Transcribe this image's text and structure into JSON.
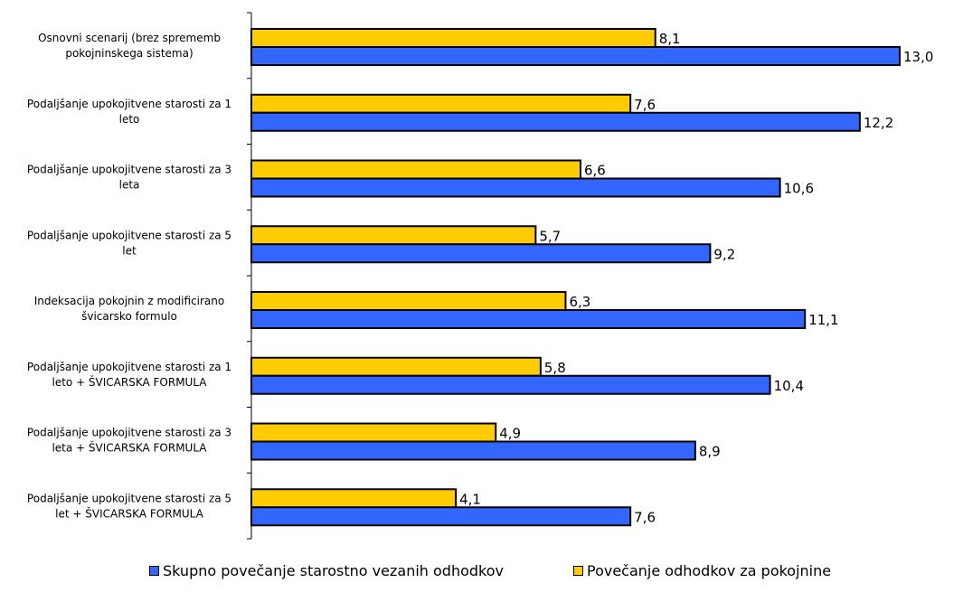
{
  "chart_data": {
    "type": "bar",
    "orientation": "horizontal",
    "categories": [
      [
        "Osnovni scenarij (brez sprememb",
        "pokojninskega sistema)"
      ],
      [
        "Podaljšanje upokojitvene starosti za 1",
        "leto"
      ],
      [
        "Podaljšanje upokojitvene starosti za 3",
        "leta"
      ],
      [
        "Podaljšanje upokojitvene starosti za 5",
        "let"
      ],
      [
        "Indeksacija pokojnin z modificirano",
        "švicarsko formulo"
      ],
      [
        "Podaljšanje upokojitvene starosti za 1",
        "leto + ŠVICARSKA FORMULA"
      ],
      [
        "Podaljšanje upokojitvene starosti za 3",
        "leta + ŠVICARSKA FORMULA"
      ],
      [
        "Podaljšanje upokojitvene starosti za 5",
        "let + ŠVICARSKA FORMULA"
      ]
    ],
    "series": [
      {
        "name": "Povečanje odhodkov za pokojnine",
        "color": "#ffcc00",
        "values": [
          8.1,
          7.6,
          6.6,
          5.7,
          6.3,
          5.8,
          4.9,
          4.1
        ],
        "labels": [
          "8,1",
          "7,6",
          "6,6",
          "5,7",
          "6,3",
          "5,8",
          "4,9",
          "4,1"
        ]
      },
      {
        "name": "Skupno povečanje starostno vezanih odhodkov",
        "color": "#3366ff",
        "values": [
          13.0,
          12.2,
          10.6,
          9.2,
          11.1,
          10.4,
          8.9,
          7.6
        ],
        "labels": [
          "13,0",
          "12,2",
          "10,6",
          "9,2",
          "11,1",
          "10,4",
          "8,9",
          "7,6"
        ]
      }
    ],
    "legend": {
      "position": "bottom",
      "entries": [
        {
          "label": "Skupno povečanje starostno vezanih odhodkov",
          "color": "#3366ff"
        },
        {
          "label": "Povečanje odhodkov za pokojnine",
          "color": "#ffcc00"
        }
      ]
    },
    "title": "",
    "xlabel": "",
    "ylabel": "",
    "xlim": [
      0,
      13.0
    ],
    "grid": false
  }
}
